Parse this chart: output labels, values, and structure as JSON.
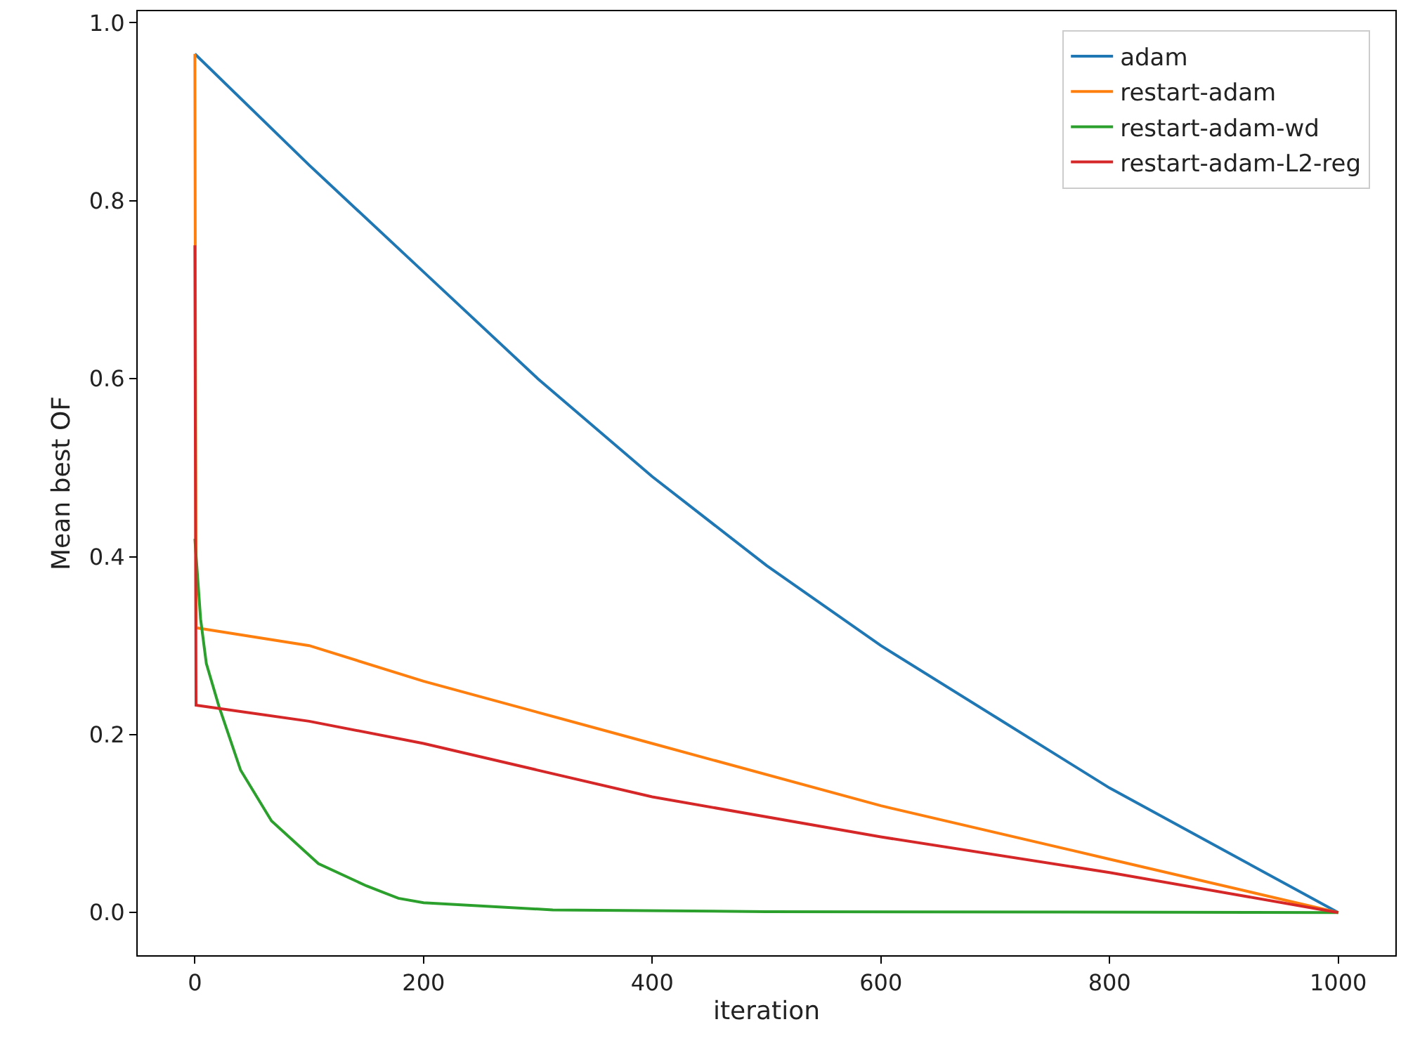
{
  "chart_data": {
    "type": "line",
    "xlabel": "iteration",
    "ylabel": "Mean best OF",
    "xlim": [
      -50,
      1050
    ],
    "ylim": [
      -0.048,
      1.013
    ],
    "xticks": [
      0,
      200,
      400,
      600,
      800,
      1000
    ],
    "yticks": [
      {
        "value": 0,
        "label": "0.0"
      },
      {
        "value": 0.2,
        "label": "0.2"
      },
      {
        "value": 0.4,
        "label": "0.4"
      },
      {
        "value": 0.6,
        "label": "0.6"
      },
      {
        "value": 0.8,
        "label": "0.8"
      },
      {
        "value": 1,
        "label": "1.0"
      }
    ],
    "legend": "top right",
    "marker": "none",
    "line_style": "solid",
    "series": [
      {
        "name": "adam",
        "color": "#1f77b4",
        "x": [
          0,
          100,
          200,
          300,
          400,
          500,
          600,
          700,
          800,
          900,
          1000
        ],
        "values": [
          0.965,
          0.84,
          0.72,
          0.6,
          0.49,
          0.39,
          0.3,
          0.22,
          0.14,
          0.07,
          0
        ]
      },
      {
        "name": "restart-adam",
        "color": "#ff7f0e",
        "x": [
          0,
          1,
          100,
          200,
          400,
          600,
          800,
          1000
        ],
        "values": [
          0.965,
          0.32,
          0.3,
          0.26,
          0.19,
          0.12,
          0.06,
          0
        ]
      },
      {
        "name": "restart-adam-wd",
        "color": "#2ca02c",
        "x": [
          0,
          5,
          10,
          21,
          40,
          67,
          108,
          150,
          178,
          200,
          313,
          500,
          1000
        ],
        "values": [
          0.42,
          0.33,
          0.28,
          0.232,
          0.16,
          0.103,
          0.055,
          0.03,
          0.016,
          0.011,
          0.003,
          0.001,
          0
        ]
      },
      {
        "name": "restart-adam-L2-reg",
        "color": "#d62728",
        "x": [
          0,
          1,
          100,
          200,
          400,
          600,
          800,
          1000
        ],
        "values": [
          0.75,
          0.233,
          0.215,
          0.19,
          0.13,
          0.085,
          0.045,
          0
        ]
      }
    ]
  }
}
